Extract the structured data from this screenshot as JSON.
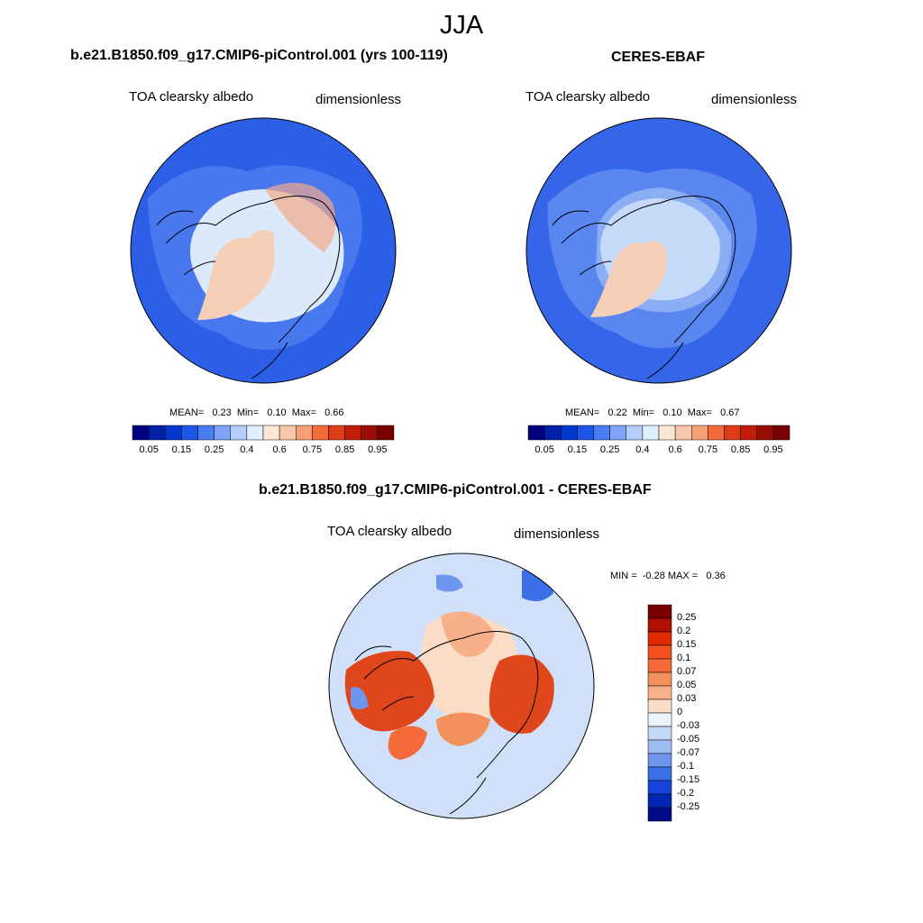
{
  "season": "JJA",
  "panels": {
    "model": {
      "title": "b.e21.B1850.f09_g17.CMIP6-piControl.001 (yrs 100-119)",
      "variable": "TOA clearsky albedo",
      "units": "dimensionless",
      "stats": "MEAN=   0.23  Min=   0.10  Max=   0.66"
    },
    "obs": {
      "title": "CERES-EBAF",
      "variable": "TOA clearsky albedo",
      "units": "dimensionless",
      "stats": "MEAN=   0.22  Min=   0.10  Max=   0.67"
    },
    "diff": {
      "title": "b.e21.B1850.f09_g17.CMIP6-piControl.001 - CERES-EBAF",
      "variable": "TOA clearsky albedo",
      "units": "dimensionless",
      "stats": "MIN =  -0.28 MAX =   0.36"
    }
  },
  "colorbar_abs": {
    "colors": [
      "#00007f",
      "#0020a8",
      "#0038d0",
      "#1c55e8",
      "#4a7cf2",
      "#7fa3f6",
      "#b2cdf8",
      "#e0eeff",
      "#fde6d5",
      "#f8c6a8",
      "#f59f75",
      "#f26c3c",
      "#e03a18",
      "#c01e0a",
      "#9a0e04",
      "#780000"
    ],
    "labels": [
      "0.05",
      "0.15",
      "0.25",
      "0.4",
      "0.6",
      "0.75",
      "0.85",
      "0.95"
    ]
  },
  "colorbar_diff": {
    "colors": [
      "#7a0000",
      "#b00e00",
      "#e02a00",
      "#f4501e",
      "#f46a38",
      "#f4905c",
      "#f7b08a",
      "#fbdcc6",
      "#eaf2fb",
      "#c4d9f7",
      "#9cbcf2",
      "#6f96ee",
      "#3a6fe8",
      "#1644dc",
      "#0026b4",
      "#000a88"
    ],
    "labels": [
      "0.25",
      "0.2",
      "0.15",
      "0.1",
      "0.07",
      "0.05",
      "0.03",
      "0",
      "-0.03",
      "-0.05",
      "-0.07",
      "-0.1",
      "-0.15",
      "-0.2",
      "-0.25"
    ]
  },
  "map_colors": {
    "ocean_model": "#2d5ee8",
    "ocean_obs": "#3566ea",
    "ice": "#dce9fb",
    "greenland": "#f6cfb8",
    "diff_bg": "#cfe0f8",
    "diff_pos": "#e0461c"
  }
}
